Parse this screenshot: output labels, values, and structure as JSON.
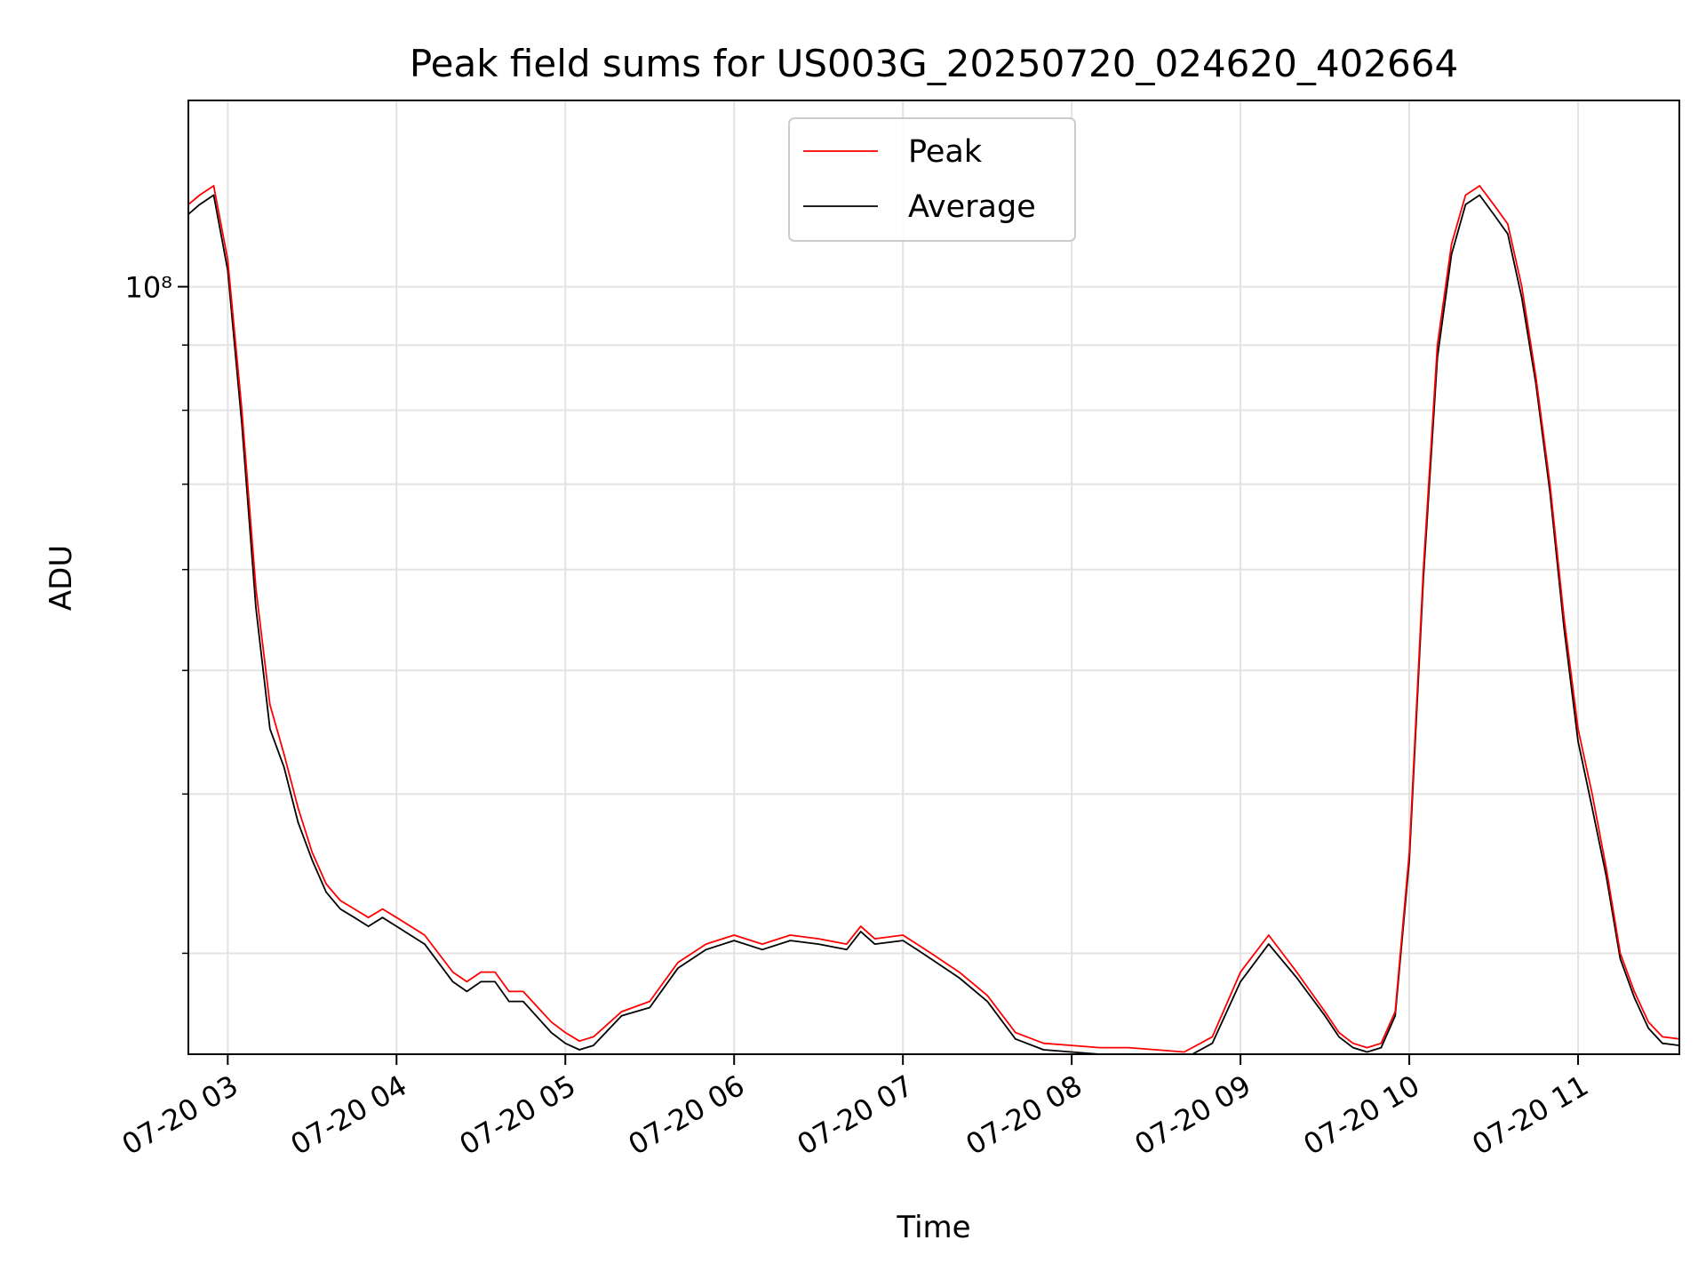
{
  "chart_data": {
    "type": "line",
    "title": "Peak field sums for US003G_20250720_024620_402664",
    "xlabel": "Time",
    "ylabel": "ADU",
    "x_scale": "time",
    "y_scale": "log",
    "xlim": [
      "2025-07-20 02:46",
      "2025-07-20 11:36"
    ],
    "ylim": [
      25000000,
      140000000
    ],
    "x_tick_labels": [
      "07-20 03",
      "07-20 04",
      "07-20 05",
      "07-20 06",
      "07-20 07",
      "07-20 08",
      "07-20 09",
      "07-20 10",
      "07-20 11"
    ],
    "y_major_tick_label": "10⁸",
    "y_major_tick_value": 100000000,
    "y_minor_tick_values": [
      30000000,
      40000000,
      50000000,
      60000000,
      70000000,
      80000000,
      90000000
    ],
    "grid": true,
    "legend_position": "top-center",
    "series": [
      {
        "name": "Peak",
        "color": "#ff0000",
        "x": [
          "02:46",
          "02:50",
          "02:55",
          "03:00",
          "03:05",
          "03:10",
          "03:15",
          "03:20",
          "03:25",
          "03:30",
          "03:35",
          "03:40",
          "03:45",
          "03:50",
          "03:55",
          "04:00",
          "04:10",
          "04:20",
          "04:25",
          "04:30",
          "04:35",
          "04:40",
          "04:45",
          "04:55",
          "05:00",
          "05:05",
          "05:10",
          "05:20",
          "05:30",
          "05:40",
          "05:50",
          "06:00",
          "06:10",
          "06:20",
          "06:30",
          "06:40",
          "06:45",
          "06:50",
          "07:00",
          "07:05",
          "07:10",
          "07:20",
          "07:30",
          "07:40",
          "07:50",
          "08:00",
          "08:10",
          "08:20",
          "08:30",
          "08:40",
          "08:50",
          "09:00",
          "09:10",
          "09:20",
          "09:30",
          "09:35",
          "09:40",
          "09:45",
          "09:50",
          "09:55",
          "10:00",
          "10:05",
          "10:10",
          "10:15",
          "10:20",
          "10:25",
          "10:30",
          "10:35",
          "10:40",
          "10:45",
          "10:50",
          "10:55",
          "11:00",
          "11:05",
          "11:10",
          "11:15",
          "11:20",
          "11:25",
          "11:30",
          "11:36"
        ],
        "values": [
          116000000,
          118000000,
          120000000,
          105000000,
          80000000,
          58000000,
          47000000,
          43000000,
          39000000,
          36000000,
          34000000,
          33000000,
          32500000,
          32000000,
          32500000,
          32000000,
          31000000,
          29000000,
          28500000,
          29000000,
          29000000,
          28000000,
          28000000,
          26500000,
          26000000,
          25600000,
          25800000,
          27000000,
          27500000,
          29500000,
          30500000,
          31000000,
          30500000,
          31000000,
          30800000,
          30500000,
          31500000,
          30800000,
          31000000,
          30500000,
          30000000,
          29000000,
          27800000,
          26000000,
          25500000,
          25400000,
          25300000,
          25300000,
          25200000,
          25100000,
          25800000,
          29000000,
          31000000,
          29000000,
          27000000,
          26000000,
          25500000,
          25300000,
          25500000,
          27000000,
          36000000,
          60000000,
          90000000,
          108000000,
          118000000,
          120000000,
          116000000,
          112000000,
          100000000,
          85000000,
          70000000,
          55000000,
          45000000,
          40000000,
          35000000,
          30000000,
          28000000,
          26500000,
          25800000,
          25700000
        ]
      },
      {
        "name": "Average",
        "color": "#000000",
        "x": [
          "02:46",
          "02:50",
          "02:55",
          "03:00",
          "03:05",
          "03:10",
          "03:15",
          "03:20",
          "03:25",
          "03:30",
          "03:35",
          "03:40",
          "03:45",
          "03:50",
          "03:55",
          "04:00",
          "04:10",
          "04:20",
          "04:25",
          "04:30",
          "04:35",
          "04:40",
          "04:45",
          "04:55",
          "05:00",
          "05:05",
          "05:10",
          "05:20",
          "05:30",
          "05:40",
          "05:50",
          "06:00",
          "06:10",
          "06:20",
          "06:30",
          "06:40",
          "06:45",
          "06:50",
          "07:00",
          "07:05",
          "07:10",
          "07:20",
          "07:30",
          "07:40",
          "07:50",
          "08:00",
          "08:10",
          "08:20",
          "08:30",
          "08:40",
          "08:50",
          "09:00",
          "09:10",
          "09:20",
          "09:30",
          "09:35",
          "09:40",
          "09:45",
          "09:50",
          "09:55",
          "10:00",
          "10:05",
          "10:10",
          "10:15",
          "10:20",
          "10:25",
          "10:30",
          "10:35",
          "10:40",
          "10:45",
          "10:50",
          "10:55",
          "11:00",
          "11:05",
          "11:10",
          "11:15",
          "11:20",
          "11:25",
          "11:30",
          "11:36"
        ],
        "values": [
          114000000,
          116000000,
          118000000,
          103000000,
          78000000,
          56000000,
          45000000,
          42000000,
          38000000,
          35500000,
          33500000,
          32500000,
          32000000,
          31500000,
          32000000,
          31500000,
          30500000,
          28500000,
          28000000,
          28500000,
          28500000,
          27500000,
          27500000,
          26000000,
          25500000,
          25200000,
          25400000,
          26800000,
          27200000,
          29200000,
          30200000,
          30700000,
          30200000,
          30700000,
          30500000,
          30200000,
          31200000,
          30500000,
          30700000,
          30200000,
          29700000,
          28700000,
          27500000,
          25700000,
          25200000,
          25100000,
          25000000,
          25000000,
          24900000,
          24800000,
          25500000,
          28500000,
          30500000,
          28700000,
          26800000,
          25800000,
          25300000,
          25100000,
          25300000,
          26800000,
          35500000,
          59000000,
          88000000,
          106000000,
          116000000,
          118000000,
          114000000,
          110000000,
          98000000,
          84000000,
          69000000,
          54000000,
          44000000,
          39000000,
          34500000,
          29700000,
          27700000,
          26200000,
          25500000,
          25400000
        ]
      }
    ]
  }
}
